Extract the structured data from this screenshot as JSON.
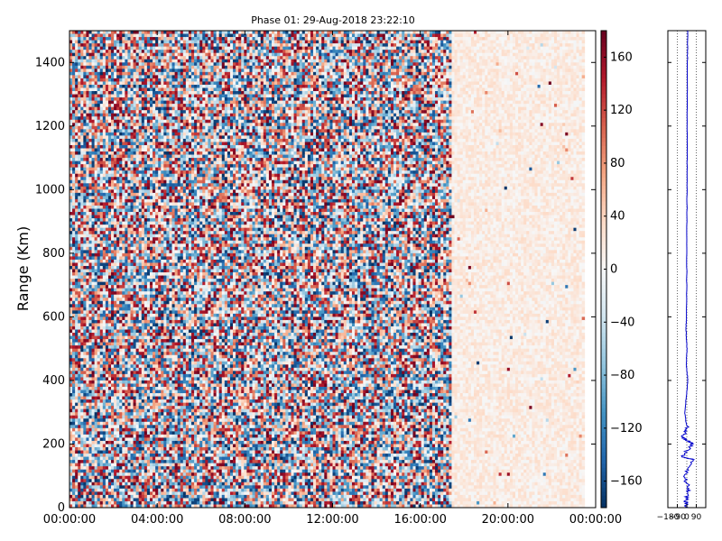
{
  "chart_data": [
    {
      "type": "heatmap",
      "title": "Phase 01: 29-Aug-2018 23:22:10",
      "xlabel": "",
      "ylabel": "Range (Km)",
      "x_tick_labels": [
        "00:00:00",
        "04:00:00",
        "08:00:00",
        "12:00:00",
        "16:00:00",
        "20:00:00",
        "00:00:00"
      ],
      "y_tick_labels": [
        "0",
        "200",
        "400",
        "600",
        "800",
        "1000",
        "1200",
        "1400"
      ],
      "y_ticks": [
        0,
        200,
        400,
        600,
        800,
        1000,
        1200,
        1400
      ],
      "ylim": [
        0,
        1500
      ],
      "xlim_hours": [
        0,
        24
      ],
      "colorbar": {
        "ticks": [
          160,
          120,
          80,
          40,
          0,
          -40,
          -80,
          -120,
          -160
        ],
        "tick_labels": [
          "160",
          "120",
          "80",
          "40",
          "0",
          "−40",
          "−80",
          "−120",
          "−160"
        ],
        "range": [
          -180,
          180
        ],
        "colormap": "RdBu_r"
      },
      "regions": [
        {
          "label": "noisy phase, random -180..180",
          "x_hours": [
            0,
            17.4
          ]
        },
        {
          "label": "coherent phase, values ~0..40",
          "x_hours": [
            17.4,
            24
          ]
        }
      ]
    },
    {
      "type": "line",
      "title": "",
      "x_tick_labels": [
        "−180",
        "−90",
        "0",
        "90"
      ],
      "x_ticks": [
        -180,
        -90,
        0,
        90
      ],
      "xlim": [
        -180,
        180
      ],
      "ylim": [
        0,
        1500
      ],
      "grid": "vertical dotted",
      "series": [
        {
          "color": "#0000cc",
          "points": [
            [
              8,
              1500
            ],
            [
              6,
              1400
            ],
            [
              4,
              1200
            ],
            [
              2,
              1000
            ],
            [
              0,
              800
            ],
            [
              -2,
              600
            ],
            [
              -8,
              560
            ],
            [
              2,
              500
            ],
            [
              -5,
              450
            ],
            [
              10,
              400
            ],
            [
              -20,
              300
            ],
            [
              0,
              250
            ],
            [
              -40,
              220
            ],
            [
              60,
              200
            ],
            [
              -50,
              160
            ],
            [
              70,
              150
            ],
            [
              -30,
              100
            ],
            [
              20,
              60
            ],
            [
              -10,
              20
            ],
            [
              0,
              0
            ]
          ]
        }
      ]
    }
  ]
}
